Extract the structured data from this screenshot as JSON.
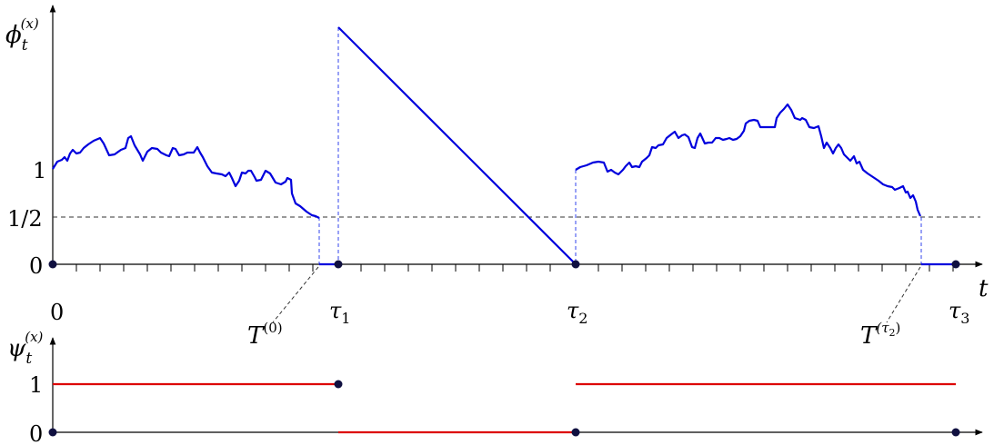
{
  "labels": {
    "phi_base": "ϕ",
    "phi_sub": "t",
    "phi_sup": "(x)",
    "psi_base": "ψ",
    "psi_sub": "t",
    "psi_sup": "(x)",
    "t": "t",
    "y_one": "1",
    "y_half": "1/2",
    "y_zero": "0",
    "x_zero": "0",
    "tau1_base": "τ",
    "tau1_sub": "1",
    "tau2_base": "τ",
    "tau2_sub": "2",
    "tau3_base": "τ",
    "tau3_sub": "3",
    "T0_base": "T",
    "T0_sup": "(0)",
    "Ttau2_base": "T",
    "Ttau2_sup_open": "(τ",
    "Ttau2_sup_sub": "2",
    "Ttau2_sup_close": ")",
    "psi_one": "1",
    "psi_zero": "0"
  },
  "colors": {
    "path": "#0000dd",
    "psi": "#dd0000",
    "axis": "#000000",
    "dashed": "#333333",
    "guide": "#3344ee"
  }
}
